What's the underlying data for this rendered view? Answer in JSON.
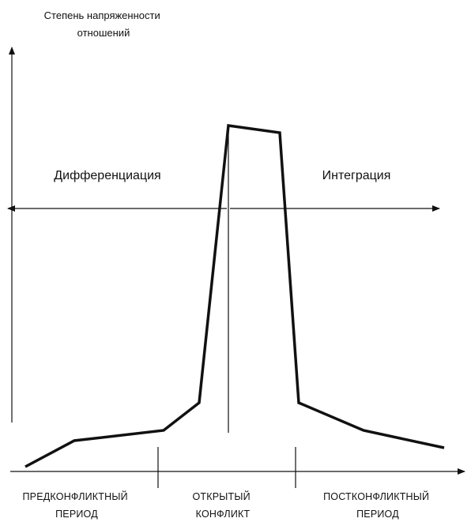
{
  "y_axis_title": [
    "Степень напряженности",
    "отношений"
  ],
  "phases": {
    "left": "Дифференциация",
    "right": "Интеграция"
  },
  "periods": [
    {
      "lines": [
        "ПРЕДКОНФЛИКТНЫЙ",
        "ПЕРИОД"
      ]
    },
    {
      "lines": [
        "ОТКРЫТЫЙ",
        "КОНФЛИКТ"
      ]
    },
    {
      "lines": [
        "ПОСТКОНФЛИКТНЫЙ",
        "ПЕРИОД"
      ]
    }
  ]
}
